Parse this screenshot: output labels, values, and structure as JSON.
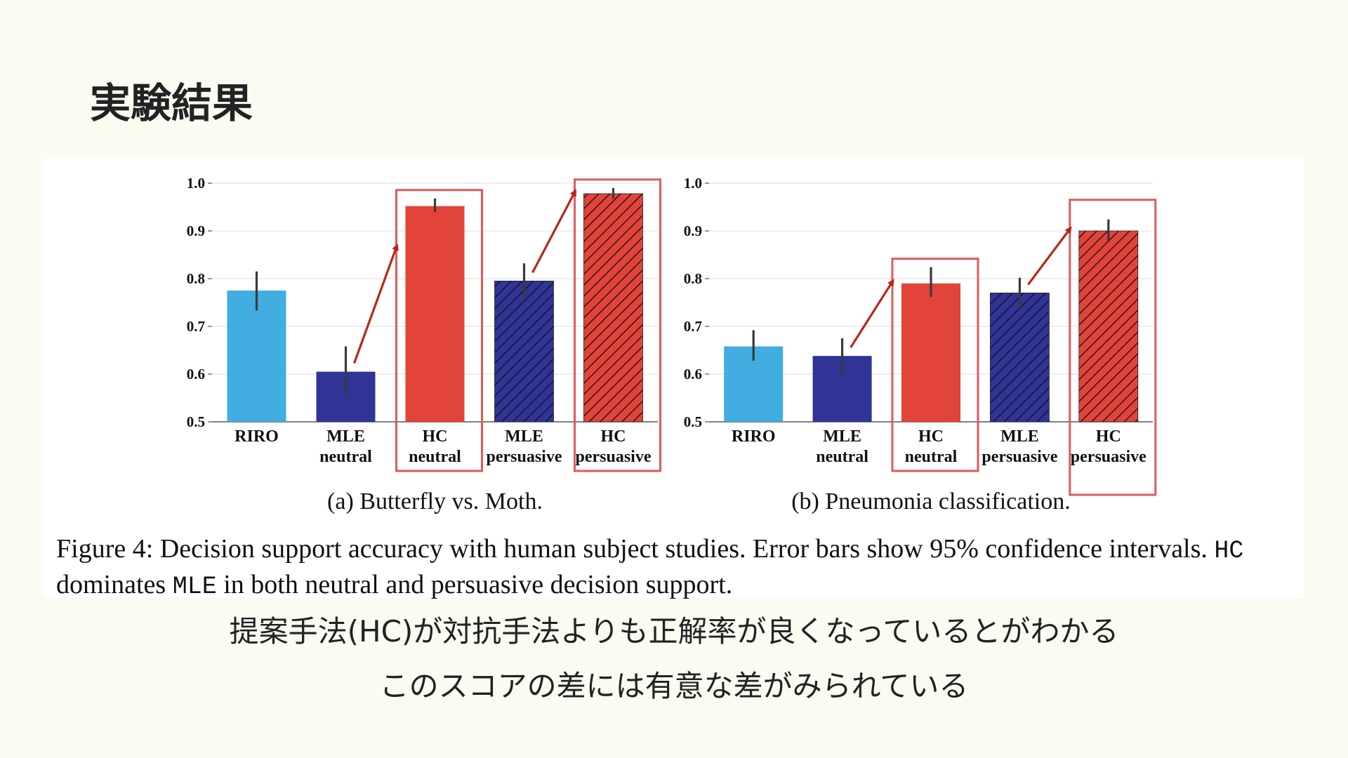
{
  "slide": {
    "title": "実験結果",
    "lines": [
      "提案手法(HC)が対抗手法よりも正解率が良くなっているとがわかる",
      "このスコアの差には有意な差がみられている"
    ]
  },
  "figure": {
    "caption_parts": [
      "Figure 4: Decision support accuracy with human subject studies. Error bars show 95% confidence intervals. ",
      "HC",
      " dominates ",
      "MLE",
      " in both neutral and persuasive decision support."
    ]
  },
  "colors": {
    "riro": "#41ade0",
    "mle": "#303497",
    "hc": "#e2433a",
    "highlight": "#e05a5a",
    "arrow": "#b5281b",
    "errorbar": "#3a3a3a"
  },
  "chart_data": [
    {
      "type": "bar",
      "subcaption": "(a) Butterfly vs. Moth.",
      "categories": [
        "RIRO",
        "MLE\nneutral",
        "HC\nneutral",
        "MLE\npersuasive",
        "HC\npersuasive"
      ],
      "values": [
        0.775,
        0.605,
        0.952,
        0.795,
        0.978
      ],
      "ci_low": [
        0.733,
        0.557,
        0.94,
        0.76,
        0.967
      ],
      "ci_high": [
        0.815,
        0.658,
        0.968,
        0.832,
        0.99
      ],
      "hatched": [
        false,
        false,
        false,
        true,
        true
      ],
      "bar_colors": [
        "riro",
        "mle",
        "hc",
        "mle",
        "hc"
      ],
      "highlighted": [
        2,
        4
      ],
      "arrows": [
        [
          1,
          2
        ],
        [
          3,
          4
        ]
      ],
      "ylim": [
        0.5,
        1.0
      ],
      "yticks": [
        "0.5",
        "0.6",
        "0.7",
        "0.8",
        "0.9",
        "1.0"
      ],
      "grid": true
    },
    {
      "type": "bar",
      "subcaption": "(b) Pneumonia classification.",
      "categories": [
        "RIRO",
        "MLE\nneutral",
        "HC\nneutral",
        "MLE\npersuasive",
        "HC\npersuasive"
      ],
      "values": [
        0.658,
        0.638,
        0.79,
        0.77,
        0.9
      ],
      "ci_low": [
        0.628,
        0.6,
        0.762,
        0.738,
        0.88
      ],
      "ci_high": [
        0.692,
        0.675,
        0.824,
        0.802,
        0.924
      ],
      "hatched": [
        false,
        false,
        false,
        true,
        true
      ],
      "bar_colors": [
        "riro",
        "mle",
        "hc",
        "mle",
        "hc"
      ],
      "highlighted": [
        2,
        4
      ],
      "arrows": [
        [
          1,
          2
        ],
        [
          3,
          4
        ]
      ],
      "ylim": [
        0.5,
        1.0
      ],
      "yticks": [
        "0.5",
        "0.6",
        "0.7",
        "0.8",
        "0.9",
        "1.0"
      ],
      "grid": true
    }
  ]
}
